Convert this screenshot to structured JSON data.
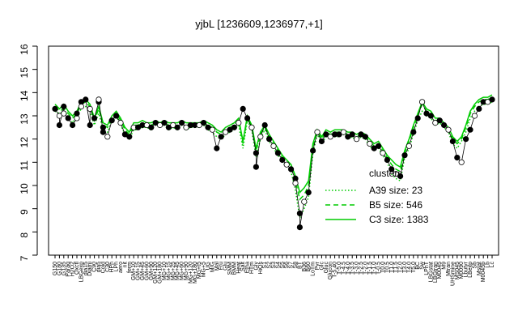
{
  "chart_data": {
    "type": "line",
    "title": "yjbL [1236609,1236977,+1]",
    "xlabel": "",
    "ylabel": "",
    "ylim": [
      7,
      16
    ],
    "yticks": [
      7,
      8,
      9,
      10,
      11,
      12,
      13,
      14,
      15,
      16
    ],
    "x_tick_labels": [
      "G150",
      "G180",
      "G135",
      "Paraq",
      "H2O2",
      "Oxctl",
      "LBGexp",
      "dia15",
      "Diami",
      "C90",
      "dia5",
      "Cold",
      "C30",
      "HPh",
      "LPh",
      "aero",
      "nit",
      "ferm",
      "GM+10",
      "GM+15",
      "GM+45",
      "GM+60",
      "GM+90",
      "GM+120",
      "GM+180",
      "MG+10",
      "MG+15",
      "MG+25",
      "MG+45",
      "MG+60",
      "MG+90",
      "MG+120",
      "MG+180",
      "MG+t5",
      "MG+5",
      "UG",
      "M/G",
      "Mal",
      "Fru",
      "Glu",
      "SMM",
      "BMM",
      "Heat",
      "Salt",
      "Etha",
      "HTm",
      "Gly",
      "HiOs",
      "S1",
      "S2",
      "S3",
      "S4",
      "S5",
      "S6",
      "S7",
      "S8",
      "BT",
      "B36",
      "B60",
      "LoTm",
      "Pyr",
      "Glc",
      "Gluc",
      "Glucon",
      "T-5.40",
      "T-5.0",
      "T-4.5",
      "T-4.0",
      "T-3.5",
      "T-3.0",
      "T-2.5",
      "T-2.0",
      "T-1.5",
      "T-1.0",
      "T-0.5",
      "T0.0",
      "T0.5",
      "T1.0",
      "T1.5",
      "T2.0",
      "T3.0",
      "T4.0",
      "T5.0",
      "BC",
      "Sw",
      "LPhT",
      "LBGstat",
      "LBGtran",
      "M0045",
      "M9",
      "Mtran",
      "UHSmine",
      "MS045",
      "M0090",
      "Lbutyr",
      "LBexp",
      "Sb",
      "Mstat",
      "M0045b",
      "Lb",
      "Lc"
    ],
    "legend": {
      "title": "clusters",
      "placement": "right",
      "entries": [
        "A39 size: 23",
        "B5 size: 546",
        "C3 size: 1383"
      ]
    },
    "series": [
      {
        "name": "A39 size: 23",
        "style": "dotted",
        "x": [
          1,
          2,
          3,
          4,
          5,
          6,
          7,
          8,
          9,
          10,
          11,
          12,
          13,
          14,
          15,
          16,
          17,
          18,
          19,
          20,
          21,
          22,
          23,
          24,
          25,
          26,
          27,
          28,
          29,
          30,
          31,
          32,
          33,
          34,
          35,
          36,
          37,
          38,
          39,
          40,
          41,
          42,
          43,
          44,
          45,
          46,
          47,
          48,
          49,
          50,
          51,
          52,
          53,
          54,
          55,
          56,
          57,
          58,
          59,
          60,
          61,
          62,
          63,
          64,
          65,
          66,
          67,
          68,
          69,
          70,
          71,
          72,
          73,
          74,
          75,
          76,
          77,
          78,
          79,
          80,
          81,
          82,
          83,
          84,
          85,
          86,
          87,
          88,
          89,
          90,
          91,
          92,
          93,
          94,
          95,
          96,
          97,
          98,
          99,
          100,
          101
        ],
        "y": [
          13.2,
          13.1,
          13.2,
          13.0,
          12.7,
          13.0,
          13.3,
          13.4,
          13.2,
          12.6,
          13.1,
          12.4,
          12.3,
          12.8,
          13.0,
          12.6,
          12.2,
          12.0,
          12.4,
          12.4,
          12.5,
          12.5,
          12.4,
          12.6,
          12.5,
          12.6,
          12.4,
          12.5,
          12.4,
          12.6,
          12.4,
          12.5,
          12.5,
          12.5,
          12.6,
          12.4,
          12.3,
          12.1,
          12.0,
          12.2,
          12.3,
          12.4,
          12.6,
          11.6,
          12.8,
          12.4,
          11.2,
          12.0,
          12.4,
          11.9,
          11.6,
          11.3,
          11.0,
          10.8,
          10.6,
          9.8,
          8.6,
          9.0,
          9.5,
          11.4,
          12.2,
          11.8,
          12.1,
          12.0,
          12.1,
          12.1,
          12.2,
          12.0,
          12.1,
          11.9,
          12.1,
          12.0,
          11.7,
          11.5,
          11.6,
          11.3,
          11.0,
          10.5,
          10.3,
          10.2,
          11.2,
          11.6,
          12.2,
          12.8,
          13.2,
          13.0,
          12.9,
          12.6,
          12.7,
          12.5,
          12.3,
          11.8,
          11.6,
          11.9,
          12.3,
          12.9,
          13.2,
          13.4,
          13.5,
          13.5,
          13.6
        ]
      },
      {
        "name": "B5 size: 546",
        "style": "dashed",
        "x": [
          1,
          2,
          3,
          4,
          5,
          6,
          7,
          8,
          9,
          10,
          11,
          12,
          13,
          14,
          15,
          16,
          17,
          18,
          19,
          20,
          21,
          22,
          23,
          24,
          25,
          26,
          27,
          28,
          29,
          30,
          31,
          32,
          33,
          34,
          35,
          36,
          37,
          38,
          39,
          40,
          41,
          42,
          43,
          44,
          45,
          46,
          47,
          48,
          49,
          50,
          51,
          52,
          53,
          54,
          55,
          56,
          57,
          58,
          59,
          60,
          61,
          62,
          63,
          64,
          65,
          66,
          67,
          68,
          69,
          70,
          71,
          72,
          73,
          74,
          75,
          76,
          77,
          78,
          79,
          80,
          81,
          82,
          83,
          84,
          85,
          86,
          87,
          88,
          89,
          90,
          91,
          92,
          93,
          94,
          95,
          96,
          97,
          98,
          99,
          100,
          101
        ],
        "y": [
          13.4,
          13.2,
          13.3,
          13.1,
          12.9,
          13.1,
          13.5,
          13.6,
          13.4,
          12.8,
          13.3,
          12.6,
          12.5,
          12.9,
          13.1,
          12.8,
          12.4,
          12.2,
          12.6,
          12.6,
          12.7,
          12.6,
          12.6,
          12.7,
          12.6,
          12.7,
          12.6,
          12.6,
          12.6,
          12.7,
          12.6,
          12.6,
          12.6,
          12.6,
          12.7,
          12.6,
          12.5,
          12.3,
          12.2,
          12.4,
          12.5,
          12.6,
          12.8,
          11.8,
          12.9,
          12.5,
          11.5,
          12.2,
          12.5,
          12.1,
          11.8,
          11.5,
          11.2,
          11.0,
          10.8,
          10.2,
          9.4,
          9.6,
          10.0,
          11.7,
          12.3,
          12.0,
          12.3,
          12.2,
          12.3,
          12.3,
          12.3,
          12.2,
          12.2,
          12.1,
          12.2,
          12.1,
          11.9,
          11.7,
          11.8,
          11.5,
          11.2,
          10.9,
          10.7,
          10.6,
          11.4,
          11.9,
          12.5,
          13.0,
          13.5,
          13.2,
          13.1,
          12.8,
          12.8,
          12.6,
          12.4,
          12.0,
          11.8,
          12.0,
          12.5,
          13.1,
          13.4,
          13.6,
          13.7,
          13.7,
          13.8
        ]
      },
      {
        "name": "C3 size: 1383",
        "style": "solid",
        "x": [
          1,
          2,
          3,
          4,
          5,
          6,
          7,
          8,
          9,
          10,
          11,
          12,
          13,
          14,
          15,
          16,
          17,
          18,
          19,
          20,
          21,
          22,
          23,
          24,
          25,
          26,
          27,
          28,
          29,
          30,
          31,
          32,
          33,
          34,
          35,
          36,
          37,
          38,
          39,
          40,
          41,
          42,
          43,
          44,
          45,
          46,
          47,
          48,
          49,
          50,
          51,
          52,
          53,
          54,
          55,
          56,
          57,
          58,
          59,
          60,
          61,
          62,
          63,
          64,
          65,
          66,
          67,
          68,
          69,
          70,
          71,
          72,
          73,
          74,
          75,
          76,
          77,
          78,
          79,
          80,
          81,
          82,
          83,
          84,
          85,
          86,
          87,
          88,
          89,
          90,
          91,
          92,
          93,
          94,
          95,
          96,
          97,
          98,
          99,
          100,
          101
        ],
        "y": [
          13.5,
          13.3,
          13.5,
          13.2,
          13.0,
          13.2,
          13.6,
          13.7,
          13.5,
          12.9,
          13.4,
          12.7,
          12.6,
          13.0,
          13.2,
          12.9,
          12.5,
          12.3,
          12.7,
          12.7,
          12.8,
          12.7,
          12.7,
          12.8,
          12.7,
          12.8,
          12.7,
          12.7,
          12.7,
          12.8,
          12.7,
          12.7,
          12.7,
          12.7,
          12.8,
          12.7,
          12.6,
          12.4,
          12.3,
          12.5,
          12.6,
          12.7,
          12.9,
          11.9,
          13.0,
          12.6,
          11.6,
          12.3,
          12.6,
          12.2,
          11.9,
          11.6,
          11.3,
          11.1,
          10.9,
          10.4,
          9.7,
          9.9,
          10.2,
          11.8,
          12.4,
          12.1,
          12.4,
          12.3,
          12.4,
          12.4,
          12.4,
          12.3,
          12.3,
          12.2,
          12.3,
          12.2,
          12.0,
          11.8,
          11.9,
          11.6,
          11.3,
          11.1,
          10.9,
          10.8,
          11.5,
          12.0,
          12.6,
          13.1,
          13.6,
          13.3,
          13.2,
          12.9,
          12.9,
          12.7,
          12.5,
          12.1,
          11.9,
          12.1,
          12.6,
          13.2,
          13.5,
          13.7,
          13.8,
          13.8,
          13.9
        ]
      }
    ],
    "points": {
      "x": [
        1,
        2,
        2,
        3,
        3,
        4,
        5,
        6,
        6,
        7,
        7,
        8,
        9,
        9,
        10,
        11,
        11,
        12,
        12,
        13,
        14,
        15,
        16,
        17,
        18,
        19,
        20,
        21,
        22,
        23,
        24,
        25,
        26,
        27,
        28,
        29,
        30,
        31,
        32,
        33,
        34,
        35,
        36,
        37,
        38,
        39,
        40,
        41,
        42,
        43,
        44,
        45,
        46,
        47,
        47,
        48,
        49,
        50,
        51,
        52,
        53,
        54,
        55,
        56,
        56,
        57,
        57,
        58,
        59,
        60,
        61,
        62,
        63,
        64,
        65,
        66,
        67,
        68,
        69,
        70,
        71,
        72,
        73,
        74,
        75,
        76,
        77,
        78,
        79,
        80,
        81,
        82,
        83,
        84,
        85,
        86,
        87,
        88,
        89,
        90,
        91,
        92,
        93,
        94,
        95,
        96,
        97,
        98,
        99,
        100,
        101
      ],
      "y": [
        13.3,
        13.0,
        12.6,
        13.4,
        13.1,
        12.9,
        12.6,
        12.9,
        13.1,
        13.6,
        13.4,
        13.7,
        12.6,
        13.3,
        12.9,
        13.6,
        13.7,
        12.3,
        12.5,
        12.1,
        12.8,
        13.0,
        12.7,
        12.2,
        12.1,
        12.5,
        12.5,
        12.6,
        12.6,
        12.5,
        12.7,
        12.6,
        12.7,
        12.5,
        12.6,
        12.5,
        12.7,
        12.5,
        12.6,
        12.6,
        12.6,
        12.7,
        12.5,
        12.4,
        11.6,
        12.1,
        12.3,
        12.4,
        12.5,
        12.7,
        13.3,
        12.9,
        12.5,
        11.4,
        10.8,
        12.1,
        12.6,
        12.0,
        11.7,
        11.4,
        11.1,
        10.9,
        10.7,
        10.3,
        10.1,
        8.8,
        8.2,
        9.3,
        9.7,
        11.5,
        12.3,
        11.9,
        12.2,
        12.1,
        12.2,
        12.2,
        12.3,
        12.1,
        12.2,
        12.0,
        12.2,
        12.1,
        11.8,
        11.6,
        11.7,
        11.4,
        11.1,
        10.7,
        10.5,
        10.4,
        11.3,
        11.7,
        12.3,
        12.9,
        13.6,
        13.1,
        13.0,
        12.7,
        12.8,
        12.6,
        12.4,
        11.9,
        11.2,
        11.0,
        12.0,
        12.4,
        13.0,
        13.3,
        13.6,
        13.6,
        13.7
      ]
    }
  }
}
